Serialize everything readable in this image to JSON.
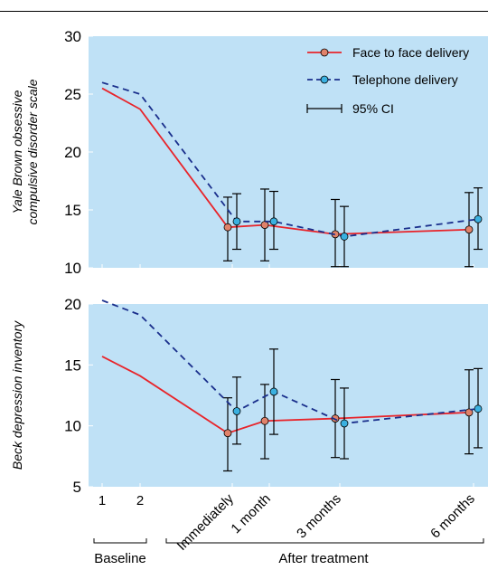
{
  "chart_data": [
    {
      "type": "line",
      "ylabel": [
        "Yale Brown obsessive",
        "compulsive disorder scale"
      ],
      "ylim": [
        10,
        30
      ],
      "yticks": [
        10,
        15,
        20,
        25,
        30
      ],
      "x_points": [
        1,
        2,
        4,
        5,
        7,
        10
      ],
      "series": [
        {
          "name": "Face to face delivery",
          "color": "#e8242a",
          "marker_color": "#e0826a",
          "dash": false,
          "values": [
            25.5,
            23.7,
            13.5,
            13.7,
            12.9,
            13.3
          ],
          "ci": [
            null,
            null,
            [
              10.6,
              16.1
            ],
            [
              10.6,
              16.8
            ],
            [
              10.1,
              15.9
            ],
            [
              10.1,
              16.5
            ]
          ]
        },
        {
          "name": "Telephone delivery",
          "color": "#1a2f8c",
          "marker_color": "#3ab0e0",
          "dash": true,
          "values": [
            26.0,
            25.0,
            14.0,
            14.0,
            12.7,
            14.2
          ],
          "ci": [
            null,
            null,
            [
              11.6,
              16.4
            ],
            [
              11.6,
              16.6
            ],
            [
              10.1,
              15.3
            ],
            [
              11.6,
              16.9
            ]
          ]
        }
      ],
      "legend": [
        "Face to face delivery",
        "Telephone delivery",
        "95% CI"
      ]
    },
    {
      "type": "line",
      "ylabel": [
        "Beck depression inventory"
      ],
      "ylim": [
        5,
        20
      ],
      "yticks": [
        5,
        10,
        15,
        20
      ],
      "x_points": [
        1,
        2,
        4,
        5,
        7,
        10
      ],
      "series": [
        {
          "name": "Face to face delivery",
          "color": "#e8242a",
          "marker_color": "#e0826a",
          "dash": false,
          "values": [
            15.7,
            14.1,
            9.4,
            10.4,
            10.6,
            11.1
          ],
          "ci": [
            null,
            null,
            [
              6.3,
              12.3
            ],
            [
              7.3,
              13.4
            ],
            [
              7.4,
              13.8
            ],
            [
              7.7,
              14.6
            ]
          ]
        },
        {
          "name": "Telephone delivery",
          "color": "#1a2f8c",
          "marker_color": "#3ab0e0",
          "dash": true,
          "values": [
            20.3,
            19.1,
            11.2,
            12.8,
            10.2,
            11.4
          ],
          "ci": [
            null,
            null,
            [
              8.5,
              14.0
            ],
            [
              9.3,
              16.3
            ],
            [
              7.3,
              13.1
            ],
            [
              8.2,
              14.7
            ]
          ]
        }
      ]
    }
  ],
  "x_tick_labels": [
    "1",
    "2",
    "Immediately",
    "1 month",
    "3 months",
    "6 months"
  ],
  "group_labels": {
    "baseline": "Baseline",
    "after": "After treatment"
  },
  "colors": {
    "panel_bg": "#bfe1f6"
  }
}
